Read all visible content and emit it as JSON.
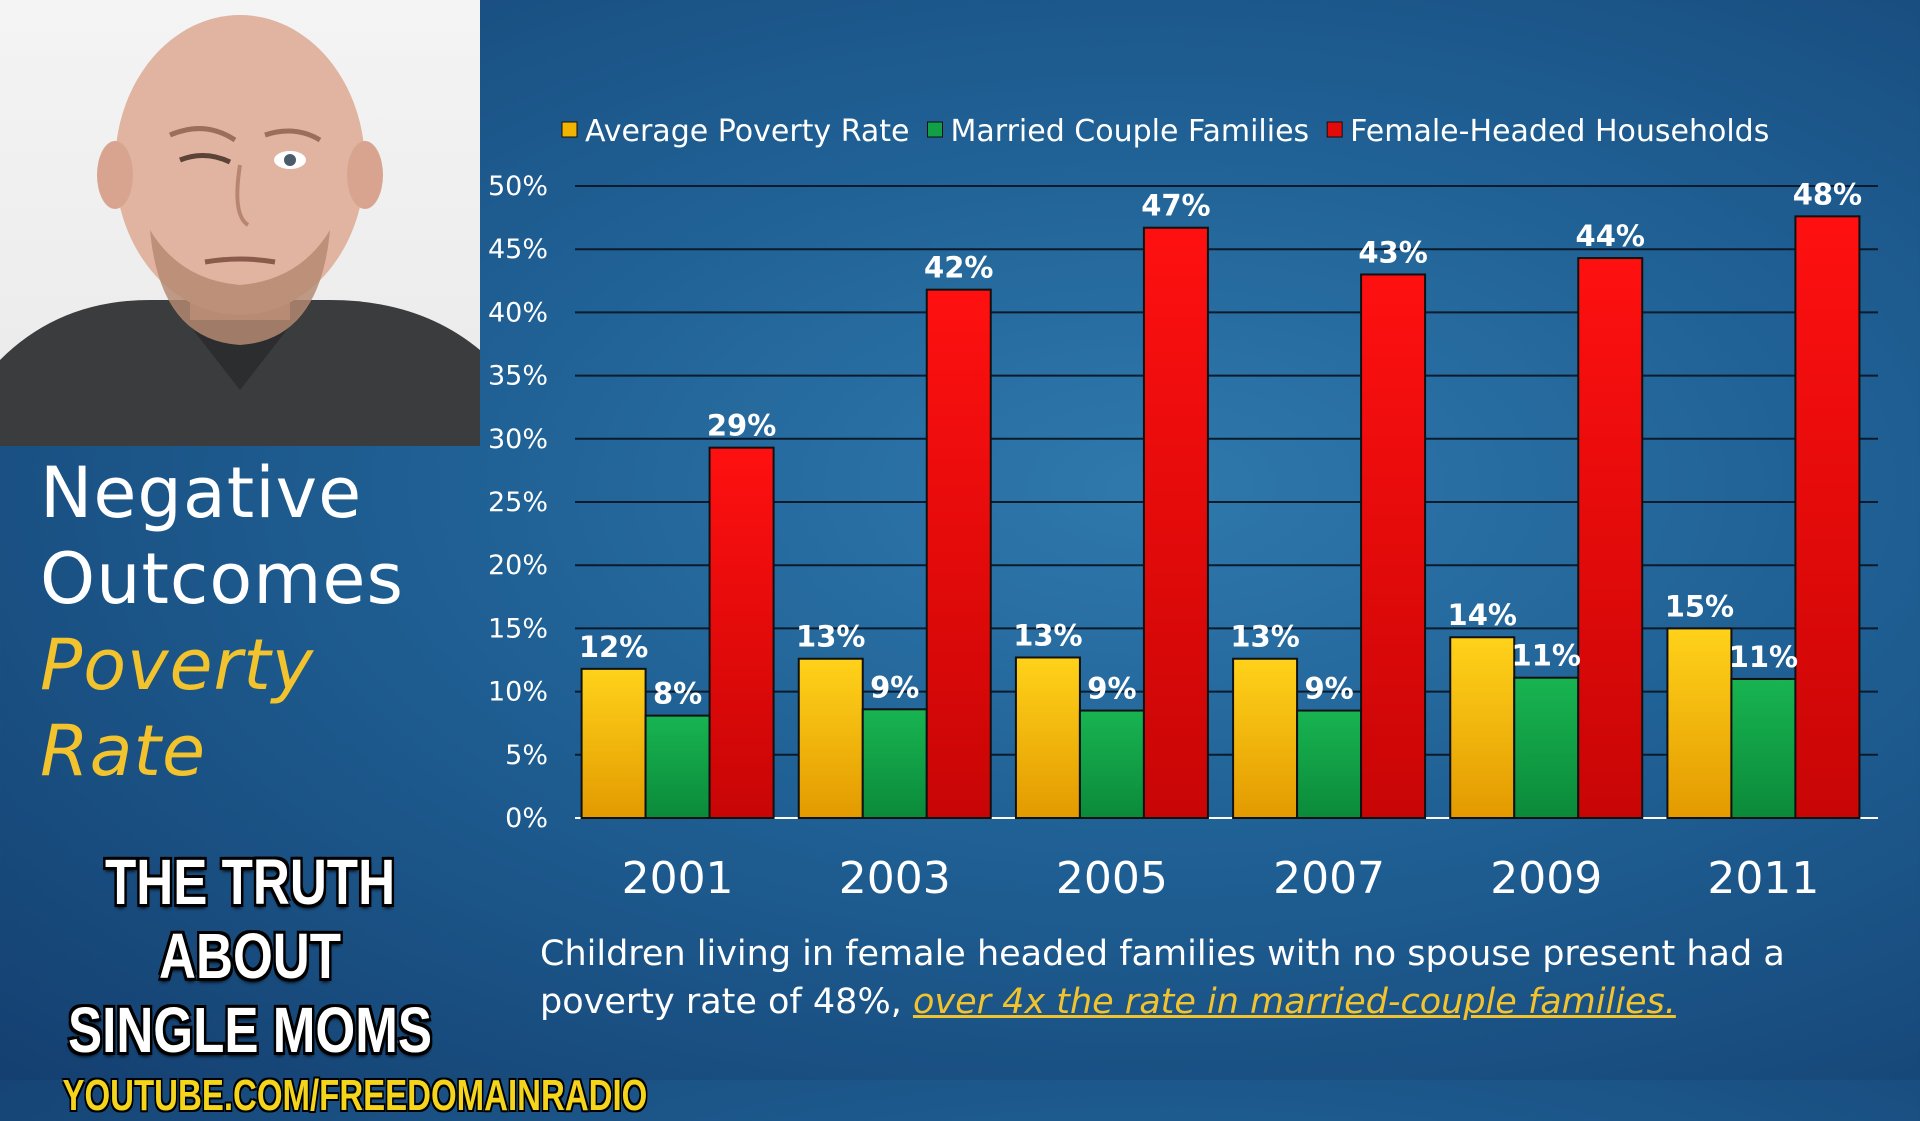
{
  "title": {
    "line1": "Negative",
    "line2": "Outcomes",
    "sub1": "Poverty",
    "sub2": "Rate"
  },
  "promo": {
    "line1": "THE TRUTH ABOUT",
    "line2": "SINGLE MOMS",
    "url": "YOUTUBE.COM/FREEDOMAINRADIO"
  },
  "caption": {
    "text": "Children living in female headed families with no spouse present had a poverty rate of 48%, ",
    "link": "over 4x the rate in married-couple families."
  },
  "colors": {
    "average": "#f1b400",
    "married": "#12a046",
    "female": "#e30a0a",
    "accent": "#f2c32c"
  },
  "chart_data": {
    "type": "bar",
    "title": "",
    "xlabel": "",
    "ylabel": "",
    "ylim": [
      0,
      50
    ],
    "yticks": [
      "0%",
      "5%",
      "10%",
      "15%",
      "20%",
      "25%",
      "30%",
      "35%",
      "40%",
      "45%",
      "50%"
    ],
    "categories": [
      "2001",
      "2003",
      "2005",
      "2007",
      "2009",
      "2011"
    ],
    "legend_position": "top",
    "grid": true,
    "series": [
      {
        "name": "Average Poverty Rate",
        "color": "#f1b400",
        "values": [
          11.8,
          12.6,
          12.7,
          12.6,
          14.3,
          15.0
        ],
        "labels": [
          "12%",
          "13%",
          "13%",
          "13%",
          "14%",
          "15%"
        ]
      },
      {
        "name": "Married Couple Families",
        "color": "#12a046",
        "values": [
          8.1,
          8.6,
          8.5,
          8.5,
          11.1,
          11.0
        ],
        "labels": [
          "8%",
          "9%",
          "9%",
          "9%",
          "11%",
          "11%"
        ]
      },
      {
        "name": "Female-Headed Households",
        "color": "#e30a0a",
        "values": [
          29.3,
          41.8,
          46.7,
          43.0,
          44.3,
          47.6
        ],
        "labels": [
          "29%",
          "42%",
          "47%",
          "43%",
          "44%",
          "48%"
        ]
      }
    ]
  }
}
